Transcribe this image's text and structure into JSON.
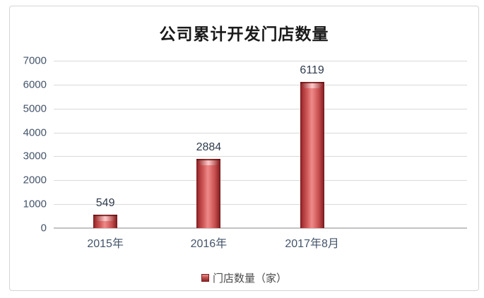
{
  "chart_data": {
    "type": "bar",
    "title": "公司累计开发门店数量",
    "categories": [
      "2015年",
      "2016年",
      "2017年8月"
    ],
    "values": [
      549,
      2884,
      6119
    ],
    "value_labels": [
      "549",
      "2884",
      "6119"
    ],
    "series": [
      {
        "name": "门店数量（家）",
        "values": [
          549,
          2884,
          6119
        ]
      }
    ],
    "ylim": [
      0,
      7000
    ],
    "ytick_interval": 1000,
    "yticks_top_to_bottom": [
      "7000",
      "6000",
      "5000",
      "4000",
      "3000",
      "2000",
      "1000",
      "0"
    ],
    "xlabel": "",
    "ylabel": "",
    "grid": "horizontal",
    "legend": {
      "label": "门店数量（家）",
      "position": "bottom",
      "marker": "red-3d-square"
    },
    "colors": {
      "bar_main": "#c0504d",
      "bar_edge_dark": "#8a2a2d",
      "bar_highlight": "#ee8a8a",
      "axis_label": "#44546a",
      "data_label": "#2e3b4d",
      "gridline": "#d9d9d9",
      "baseline": "#c3c3c3",
      "frame_border": "#d4d4d4",
      "title_text": "#1a1a1a"
    }
  }
}
